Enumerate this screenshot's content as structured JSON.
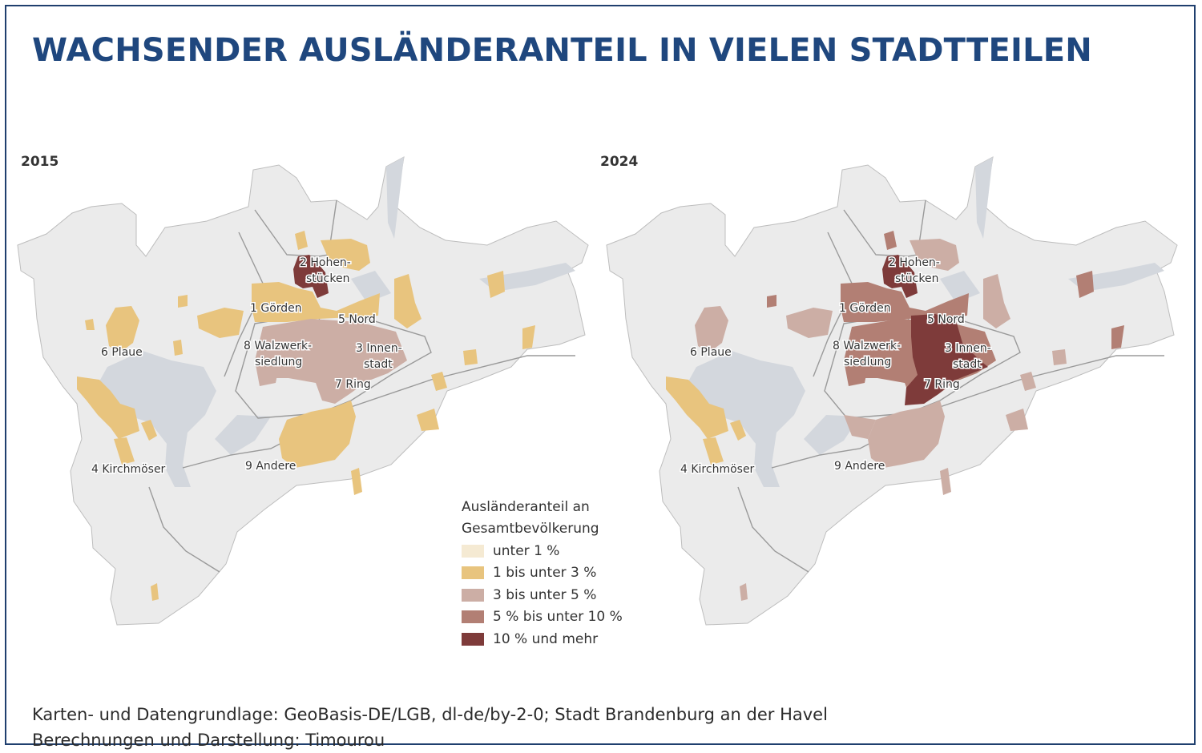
{
  "title": "WACHSENDER AUSLÄNDERANTEIL IN VIELEN STADTTEILEN",
  "maps": [
    {
      "year": "2015"
    },
    {
      "year": "2024"
    }
  ],
  "district_labels": [
    {
      "line1": "2 Hohen-",
      "line2": "stücken"
    },
    {
      "line1": "1 Görden"
    },
    {
      "line1": "5 Nord"
    },
    {
      "line1": "8 Walzwerk-",
      "line2": "siedlung"
    },
    {
      "line1": "3 Innen-",
      "line2": "stadt"
    },
    {
      "line1": "6 Plaue"
    },
    {
      "line1": "7 Ring"
    },
    {
      "line1": "4 Kirchmöser"
    },
    {
      "line1": "9 Andere"
    }
  ],
  "legend": {
    "title_line1": "Ausländeranteil an",
    "title_line2": "Gesamtbevölkerung",
    "items": [
      {
        "label": "unter 1 %",
        "color": "#f5ead3"
      },
      {
        "label": "1 bis unter 3 %",
        "color": "#e8c47e"
      },
      {
        "label": "3 bis unter 5 %",
        "color": "#ccaea5"
      },
      {
        "label": "5 % bis unter 10 %",
        "color": "#b27f74"
      },
      {
        "label": "10 % und mehr",
        "color": "#7e3b3a"
      }
    ]
  },
  "source_line1": "Karten- und Datengrundlage: GeoBasis-DE/LGB, dl-de/by-2-0; Stadt Brandenburg an der Havel",
  "source_line2": "Berechnungen und Darstellung: Timourou",
  "colors": {
    "title": "#1f477e",
    "frame": "#1f3f6e",
    "land": "#ebebeb",
    "water": "#d3d7dd",
    "border": "#9a9a9a"
  }
}
